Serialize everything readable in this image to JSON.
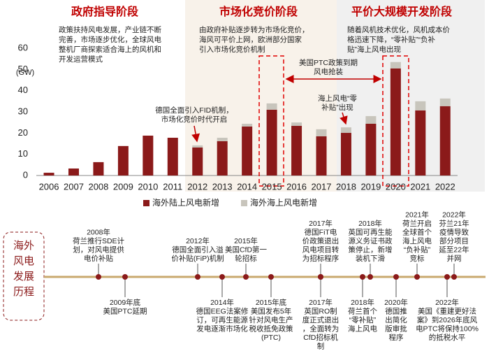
{
  "chart_data": {
    "type": "stacked_bar",
    "y_label": "(GW)",
    "categories": [
      "2006",
      "2007",
      "2008",
      "2009",
      "2010",
      "2011",
      "2012",
      "2013",
      "2014",
      "2015",
      "2016",
      "2017",
      "2018",
      "2019",
      "2020",
      "2021",
      "2022"
    ],
    "series": [
      {
        "name": "海外陆上风电新增",
        "color": "#8b1a1a",
        "values": [
          1.3,
          3.3,
          6.3,
          13.9,
          18.8,
          17.8,
          13.2,
          16.2,
          23.1,
          31.0,
          23.4,
          18.5,
          20.1,
          24.4,
          50.5,
          30.7,
          32.7
        ]
      },
      {
        "name": "海外海上风电新增",
        "color": "#c8c5bc",
        "values": [
          0,
          0,
          0,
          0,
          0,
          0,
          1.0,
          1.6,
          1.3,
          3.0,
          1.6,
          3.3,
          2.6,
          3.6,
          3.0,
          4.3,
          3.6
        ]
      }
    ],
    "ylim": [
      0,
      60
    ],
    "yticks": [
      0,
      10,
      20,
      30,
      40,
      50,
      60
    ],
    "grid": false,
    "phases": [
      {
        "title": "政府指导阶段",
        "lines": [
          "政策扶持风电发展，产业链不断",
          "完善，市场逐步优化，全球风电",
          "整机厂商探索适合海上的风机和",
          "开发运营模式"
        ]
      },
      {
        "title": "市场化竞价阶段",
        "lines": [
          "由政府补贴逐步转为市场化竞价，",
          "海风可平价上网，欧洲部分国家",
          "引入市场化竞价机制"
        ]
      },
      {
        "title": "平价大规模开发阶段",
        "lines": [
          "随着风机技术优化，风机成本价",
          "格迅速下降，“零补贴”“负补",
          "贴”海上风电出现"
        ]
      }
    ],
    "annotations": [
      {
        "lines": [
          "德国全面引入FID机制，",
          "市场化竞价时代开启"
        ]
      },
      {
        "lines": [
          "美国PTC政策到期",
          "风电抢装"
        ]
      },
      {
        "lines": [
          "海上风电“零",
          "补贴”出现"
        ]
      }
    ]
  },
  "timeline": {
    "title": [
      "海外",
      "风电",
      "发展",
      "历程"
    ],
    "upper": [
      {
        "lines": [
          "2008年",
          "荷兰推行SDE计",
          "划，对风电提供",
          "电价补贴"
        ]
      },
      {
        "lines": [
          "2012年",
          "德国全面引入溢",
          "价补贴(FiP)机制"
        ]
      },
      {
        "lines": [
          "2015年",
          "美国CfD第一",
          "轮招标"
        ]
      },
      {
        "lines": [
          "2017年",
          "德国FiT电",
          "价政策退出",
          "风电项目转",
          "为招标程序"
        ]
      },
      {
        "lines": [
          "2018年",
          "英国可再生能",
          "源义务证书政",
          "策停止，新增",
          "装机下滑"
        ]
      },
      {
        "lines": [
          "2021年",
          "荷兰开启",
          "全球首个",
          "海上风电",
          "“负补贴”",
          "竞标"
        ]
      },
      {
        "lines": [
          "2022年",
          "芬兰21年",
          "疫情导致",
          "部分项目",
          "延至22年",
          "并网"
        ]
      }
    ],
    "lower": [
      {
        "lines": [
          "2009年底",
          "美国PTC延期"
        ]
      },
      {
        "lines": [
          "2014年",
          "德国EEG法案修",
          "订，可再生能源",
          "发电逐渐市场化"
        ]
      },
      {
        "lines": [
          "2015年底",
          "美国发布5年",
          "针对风电生产",
          "税收抵免政策",
          "(PTC)"
        ]
      },
      {
        "lines": [
          "2017年",
          "英国RO制",
          "度正式退出",
          "，全面转为",
          "CfD招标机",
          "制"
        ]
      },
      {
        "lines": [
          "2018年",
          "荷兰首个",
          "“零补贴”",
          "海上风电"
        ]
      },
      {
        "lines": [
          "2020年",
          "德国推",
          "出简化",
          "版审批",
          "程序"
        ]
      },
      {
        "lines": [
          "2022年",
          "美国《重建更好法",
          "案》到2026年底风",
          "电PTC将保持100%",
          "的抵税水平"
        ]
      }
    ]
  }
}
